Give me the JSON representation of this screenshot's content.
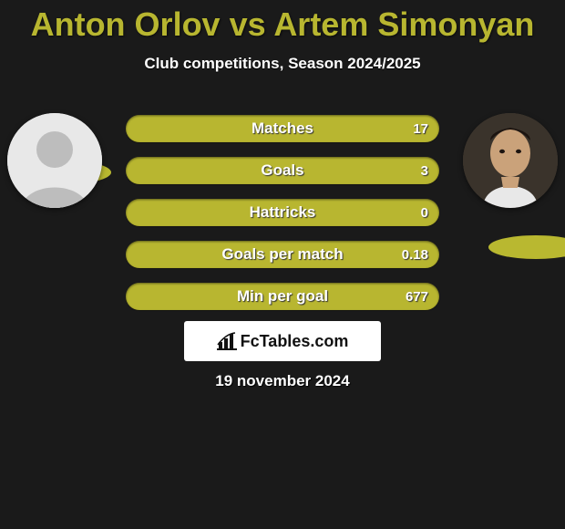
{
  "title": {
    "player1": "Anton Orlov",
    "vs": "vs",
    "player2": "Artem Simonyan",
    "color": "#b8b630",
    "fontsize": 36
  },
  "subtitle": {
    "text": "Club competitions, Season 2024/2025",
    "fontsize": 17
  },
  "bars": {
    "background_color": "#b8b630",
    "fill_color": "#6fc23b",
    "items": [
      {
        "label": "Matches",
        "left": "",
        "right": "17",
        "left_pct": 0,
        "right_pct": 0
      },
      {
        "label": "Goals",
        "left": "",
        "right": "3",
        "left_pct": 0,
        "right_pct": 0
      },
      {
        "label": "Hattricks",
        "left": "",
        "right": "0",
        "left_pct": 0,
        "right_pct": 0
      },
      {
        "label": "Goals per match",
        "left": "",
        "right": "0.18",
        "left_pct": 0,
        "right_pct": 0
      },
      {
        "label": "Min per goal",
        "left": "",
        "right": "677",
        "left_pct": 0,
        "right_pct": 0
      }
    ]
  },
  "shadows": {
    "color": "#b9b830"
  },
  "logo": {
    "text": "FcTables.com"
  },
  "date": {
    "text": "19 november 2024"
  },
  "colors": {
    "page_bg": "#1a1a1a",
    "text": "#ffffff"
  }
}
